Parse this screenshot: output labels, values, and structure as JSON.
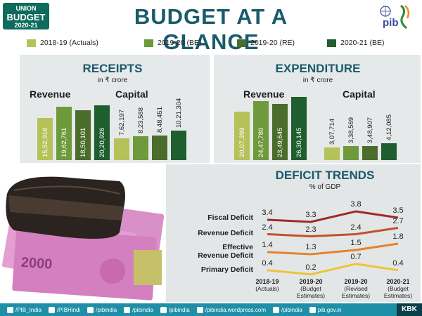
{
  "header": {
    "badge": [
      "UNION",
      "BUDGET",
      "2020-21"
    ],
    "title": "BUDGET AT A GLANCE",
    "logo_text": "pib"
  },
  "legend": [
    {
      "label": "2018-19 (Actuals)",
      "color": "#b5c25a"
    },
    {
      "label": "2019-20 (BE)",
      "color": "#6e9a3c"
    },
    {
      "label": "2019-20 (RE)",
      "color": "#4a6d2b"
    },
    {
      "label": "2020-21 (BE)",
      "color": "#1f5e2e"
    }
  ],
  "receipts": {
    "title": "RECEIPTS",
    "unit": "in ₹ crore",
    "group1": "Revenue",
    "group2": "Capital"
  },
  "expenditure": {
    "title": "EXPENDITURE",
    "unit": "in ₹ crore",
    "group1": "Revenue",
    "group2": "Capital"
  },
  "deficit": {
    "title": "DEFICIT TRENDS",
    "unit": "% of GDP",
    "rows": [
      "Fiscal Deficit",
      "Revenue Deficit",
      "Effective\nRevenue Deficit",
      "Primary Deficit"
    ],
    "x_ticks": [
      {
        "year": "2018-19",
        "note": "(Actuals)"
      },
      {
        "year": "2019-20",
        "note": "(Budget\nEstimates)"
      },
      {
        "year": "2019-20",
        "note": "(Revised\nEstimates)"
      },
      {
        "year": "2020-21",
        "note": "(Budget\nEstimates)"
      }
    ]
  },
  "footer": {
    "items": [
      "/PIB_India",
      "/PIBHindi",
      "/pibindia",
      "/pibindia",
      "/pibindia",
      "/pibindia.wordpress.com",
      "/pibindia",
      "pib.gov.in"
    ],
    "kbk": "KBK"
  },
  "chart_data": [
    {
      "type": "bar",
      "title": "RECEIPTS",
      "subtitle": "in ₹ crore",
      "groups": [
        "Revenue",
        "Capital"
      ],
      "series": [
        {
          "name": "2018-19 (Actuals)",
          "values": [
            1552916,
            762197
          ],
          "labels": [
            "15,52,916",
            "7,62,197"
          ]
        },
        {
          "name": "2019-20 (BE)",
          "values": [
            1962761,
            823588
          ],
          "labels": [
            "19,62,761",
            "8,23,588"
          ]
        },
        {
          "name": "2019-20 (RE)",
          "values": [
            1850101,
            848451
          ],
          "labels": [
            "18,50,101",
            "8,48,451"
          ]
        },
        {
          "name": "2020-21 (BE)",
          "values": [
            2020926,
            1021304
          ],
          "labels": [
            "20,20,926",
            "10,21,304"
          ]
        }
      ]
    },
    {
      "type": "bar",
      "title": "EXPENDITURE",
      "subtitle": "in ₹ crore",
      "groups": [
        "Revenue",
        "Capital"
      ],
      "series": [
        {
          "name": "2018-19 (Actuals)",
          "values": [
            2007399,
            307714
          ],
          "labels": [
            "20,07,399",
            "3,07,714"
          ]
        },
        {
          "name": "2019-20 (BE)",
          "values": [
            2447780,
            338569
          ],
          "labels": [
            "24,47,780",
            "3,38,569"
          ]
        },
        {
          "name": "2019-20 (RE)",
          "values": [
            2349645,
            348907
          ],
          "labels": [
            "23,49,645",
            "3,48,907"
          ]
        },
        {
          "name": "2020-21 (BE)",
          "values": [
            2630145,
            412085
          ],
          "labels": [
            "26,30,145",
            "4,12,085"
          ]
        }
      ]
    },
    {
      "type": "line",
      "title": "DEFICIT TRENDS",
      "subtitle": "% of GDP",
      "categories": [
        "2018-19 (Actuals)",
        "2019-20 (Budget Estimates)",
        "2019-20 (Revised Estimates)",
        "2020-21 (Budget Estimates)"
      ],
      "series": [
        {
          "name": "Fiscal Deficit",
          "values": [
            3.4,
            3.3,
            3.8,
            3.5
          ],
          "labels": [
            "3.4",
            "3.3",
            "3.8",
            "3.5"
          ],
          "color": "#9e2a2b"
        },
        {
          "name": "Revenue Deficit",
          "values": [
            2.4,
            2.3,
            2.4,
            2.7
          ],
          "labels": [
            "2.4",
            "2.3",
            "2.4",
            "2.7"
          ],
          "color": "#c0522a"
        },
        {
          "name": "Effective Revenue Deficit",
          "values": [
            1.4,
            1.3,
            1.5,
            1.8
          ],
          "labels": [
            "1.4",
            "1.3",
            "1.5",
            "1.8"
          ],
          "color": "#e3832a"
        },
        {
          "name": "Primary Deficit",
          "values": [
            0.4,
            0.2,
            0.7,
            0.4
          ],
          "labels": [
            "0.4",
            "0.2",
            "0.7",
            "0.4"
          ],
          "color": "#f0c23a"
        }
      ]
    }
  ]
}
